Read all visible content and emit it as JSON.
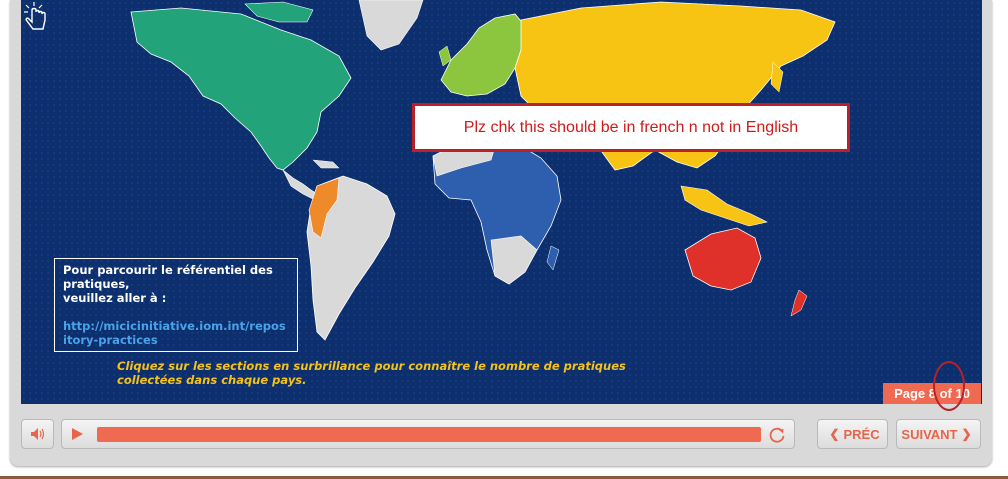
{
  "review_note": "Plz chk this should be in french n not in English",
  "info_box": {
    "text": "Pour parcourir le référentiel des pratiques,\nveuillez aller à :",
    "link": "http://micicinitiative.iom.int/repository-practices"
  },
  "hint": "Cliquez sur les sections en surbrillance pour connaître le nombre de pratiques collectées dans chaque pays.",
  "page_indicator": "Page 8 of 10",
  "player": {
    "progress": 1.0
  },
  "nav": {
    "prev_label": "PRÉC",
    "next_label": "SUIVANT"
  },
  "colors": {
    "ocean": "#0d2f6e",
    "north_america": "#22a37a",
    "europe": "#8cc63f",
    "asia": "#f8c414",
    "africa": "#2e5fae",
    "south_america_highlight": "#ef8a2a",
    "oceania": "#e0302a",
    "unselected": "#d9d9d9",
    "accent": "#ef6a50"
  },
  "icons": {
    "volume": "speaker-icon",
    "play": "play-icon",
    "replay": "replay-icon",
    "hand": "pointer-hand-icon"
  }
}
